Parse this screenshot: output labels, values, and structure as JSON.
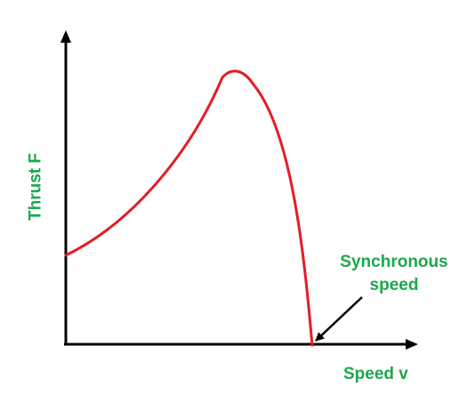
{
  "y_axis_label": "Thrust F",
  "x_axis_label": "Speed v",
  "annotation": {
    "line1": "Synchronous",
    "line2": "speed"
  },
  "colors": {
    "curve": "#e31e24",
    "label": "#1aa84b",
    "axis": "#000000"
  }
}
